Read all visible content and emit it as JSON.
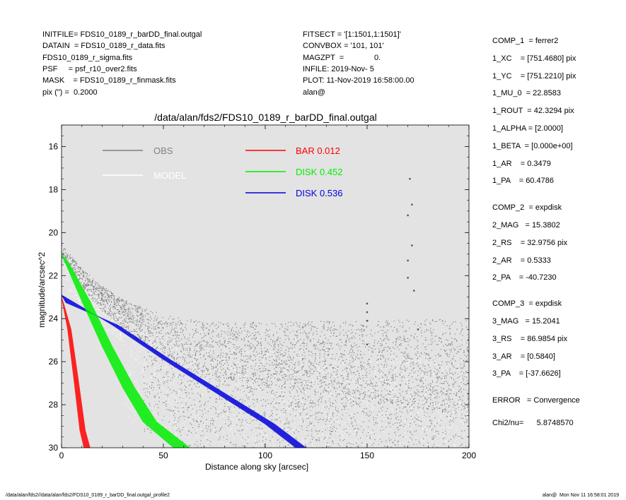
{
  "header_left": [
    "INITFILE= FDS10_0189_r_barDD_final.outgal",
    "DATAIN  = FDS10_0189_r_data.fits",
    "FDS10_0189_r_sigma.fits",
    "PSF     = psf_r10_over2.fits",
    "MASK    = FDS10_0189_r_finmask.fits",
    "pix (\") =  0.2000"
  ],
  "header_mid": [
    "FITSECT = '[1:1501,1:1501]'",
    "CONVBOX = '101, 101'",
    "MAGZPT  =              0.",
    "INFILE: 2019-Nov- 5",
    "PLOT: 11-Nov-2019 16:58:00.00",
    "alan@"
  ],
  "params": [
    "COMP_1  = ferrer2",
    "1_XC    = [751.4680] pix",
    "1_YC    = [751.2210] pix",
    "1_MU_0  = 22.8583",
    "1_ROUT  = 42.3294 pix",
    "1_ALPHA = [2.0000]",
    "1_BETA  = [0.000e+00]",
    "1_AR    = 0.3479",
    "1_PA    = 60.4786",
    "COMP_2  = expdisk",
    "2_MAG   = 15.3802",
    "2_RS    = 32.9756 pix",
    "2_AR    = 0.5333",
    "2_PA    = -40.7230",
    "COMP_3  = expdisk",
    "3_MAG   = 15.2041",
    "3_RS    = 86.9854 pix",
    "3_AR    = [0.5840]",
    "3_PA    = [-37.6626]",
    "ERROR   = Convergence",
    "Chi2/nu=      5.8748570"
  ],
  "footer": {
    "left": "/data/alan/fds2//data/alan/fds2/FDS10_0189_r_barDD_final.outgal_profile2",
    "right": "alan@  Mon Nov 11 16:58:01 2019"
  },
  "colors": {
    "panel_bg": "#e3e3e3",
    "obs": "#808080",
    "model": "#ffffff",
    "bar": "#ff0000",
    "disk1": "#00ee00",
    "disk2": "#0000dd"
  },
  "chart_data": {
    "type": "scatter",
    "title": "/data/alan/fds2/FDS10_0189_r_barDD_final.outgal",
    "xlabel": "Distance along sky [arcsec]",
    "ylabel": "magnitude/arcsec^2",
    "xlim": [
      0,
      200
    ],
    "ylim": [
      30,
      15
    ],
    "y_inverted": true,
    "xticks": [
      "0",
      "50",
      "100",
      "150",
      "200"
    ],
    "yticks": [
      "16",
      "18",
      "20",
      "22",
      "24",
      "26",
      "28",
      "30"
    ],
    "grid": false,
    "legend_placement": "top",
    "legend": [
      {
        "label": "OBS",
        "value": ""
      },
      {
        "label": "MODEL",
        "value": ""
      },
      {
        "label": "BAR",
        "value": "0.012"
      },
      {
        "label": "DISK",
        "value": "0.452"
      },
      {
        "label": "DISK",
        "value": "0.536"
      }
    ],
    "series": [
      {
        "name": "OBS",
        "x": [
          0,
          5,
          10,
          20,
          30,
          40,
          50,
          60,
          70,
          80,
          100,
          150,
          200
        ],
        "y": [
          20.8,
          21.4,
          22.0,
          22.9,
          23.6,
          24.1,
          24.5,
          24.8,
          25.0,
          25.1,
          25.2,
          25.4,
          25.6
        ]
      },
      {
        "name": "MODEL",
        "x": [
          0,
          10,
          20,
          30,
          40,
          50,
          70,
          100,
          150,
          200
        ],
        "y": [
          20.8,
          22.0,
          23.0,
          23.7,
          24.3,
          24.8,
          25.7,
          27.0,
          28.8,
          30.0
        ]
      },
      {
        "name": "BAR",
        "x": [
          0,
          3,
          6,
          9,
          11
        ],
        "y": [
          23.0,
          24.5,
          26.8,
          29.2,
          30.0
        ]
      },
      {
        "name": "DISK",
        "x": [
          0,
          10,
          20,
          30,
          40,
          55
        ],
        "y": [
          21.0,
          23.2,
          25.3,
          27.2,
          28.8,
          30.0
        ]
      },
      {
        "name": "DISK",
        "x": [
          0,
          25,
          50,
          75,
          100,
          115
        ],
        "y": [
          22.9,
          24.3,
          25.9,
          27.4,
          28.9,
          30.0
        ]
      }
    ],
    "outliers": {
      "x": [
        150,
        150,
        150,
        150,
        170,
        170,
        170,
        171,
        172,
        172,
        173,
        175
      ],
      "y": [
        23.3,
        23.7,
        24.1,
        25.2,
        22.1,
        19.2,
        21.3,
        17.5,
        18.7,
        20.6,
        22.7,
        24.5
      ]
    }
  }
}
